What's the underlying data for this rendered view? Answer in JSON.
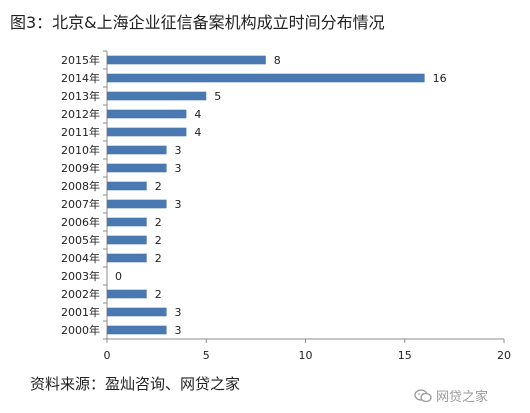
{
  "title": "图3：北京&上海企业征信备案机构成立时间分布情况",
  "source": "资料来源：盈灿咨询、网贷之家",
  "watermark": "网贷之家",
  "chart_data": {
    "type": "bar",
    "orientation": "horizontal",
    "title": "图3：北京&上海企业征信备案机构成立时间分布情况",
    "categories": [
      "2015年",
      "2014年",
      "2013年",
      "2012年",
      "2011年",
      "2010年",
      "2009年",
      "2008年",
      "2007年",
      "2006年",
      "2005年",
      "2004年",
      "2003年",
      "2002年",
      "2001年",
      "2000年"
    ],
    "values": [
      8,
      16,
      5,
      4,
      4,
      3,
      3,
      2,
      3,
      2,
      2,
      2,
      0,
      2,
      3,
      3
    ],
    "xlim": [
      0,
      20
    ],
    "xticks": [
      "0",
      "5",
      "10",
      "15",
      "20"
    ],
    "bar_color": "#4a78b0",
    "grid": false
  }
}
